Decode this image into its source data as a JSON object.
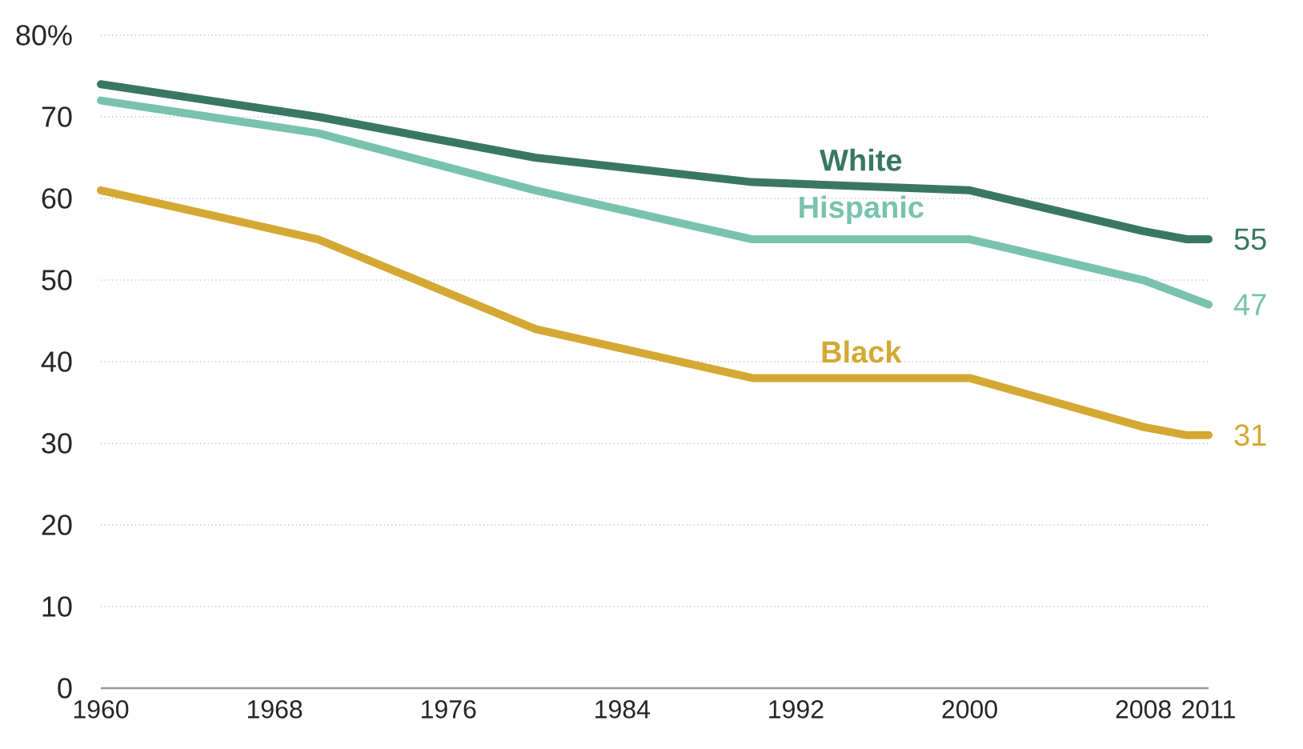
{
  "chart_data": {
    "type": "line",
    "xlim": [
      1960,
      2011
    ],
    "ylim": [
      0,
      80
    ],
    "xticks": [
      1960,
      1968,
      1976,
      1984,
      1992,
      2000,
      2008,
      2011
    ],
    "yticks": [
      0,
      10,
      20,
      30,
      40,
      50,
      60,
      70,
      {
        "value": 80,
        "label": "80%"
      }
    ],
    "grid": "y",
    "legend": false,
    "series": [
      {
        "name": "White",
        "color": "#3a7762",
        "x": [
          1960,
          1970,
          1980,
          1990,
          2000,
          2008,
          2010,
          2011
        ],
        "values": [
          74,
          70,
          65,
          62,
          61,
          56,
          55,
          55
        ],
        "value_labels": [
          null,
          null,
          null,
          null,
          null,
          null,
          null,
          "55"
        ]
      },
      {
        "name": "Hispanic",
        "color": "#79c2ad",
        "x": [
          1960,
          1970,
          1980,
          1990,
          2000,
          2008,
          2011
        ],
        "values": [
          72,
          68,
          61,
          55,
          55,
          50,
          47
        ],
        "value_labels": [
          null,
          null,
          null,
          null,
          null,
          null,
          "47"
        ]
      },
      {
        "name": "Black",
        "color": "#d4a833",
        "x": [
          1960,
          1970,
          1980,
          1990,
          2000,
          2008,
          2010,
          2011
        ],
        "values": [
          61,
          55,
          44,
          38,
          38,
          32,
          31,
          31
        ],
        "value_labels": [
          null,
          null,
          null,
          null,
          null,
          null,
          null,
          "31"
        ]
      }
    ]
  }
}
